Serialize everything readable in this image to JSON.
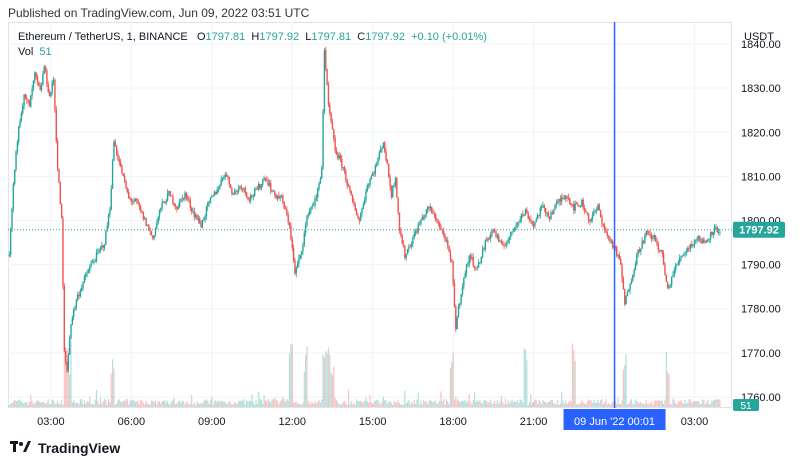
{
  "header": {
    "published": "Published on TradingView.com, Jun 09, 2022 03:51 UTC"
  },
  "legend": {
    "symbol": "Ethereum / TetherUS, 1, BINANCE",
    "o_label": "O",
    "o_value": "1797.81",
    "h_label": "H",
    "h_value": "1797.92",
    "l_label": "L",
    "l_value": "1797.81",
    "c_label": "C",
    "c_value": "1797.92",
    "change": "+0.10 (+0.01%)",
    "vol_label": "Vol",
    "vol_value": "51"
  },
  "footer": {
    "brand": "TradingView"
  },
  "colors": {
    "up": "#26a69a",
    "down": "#ef5350",
    "crosshair": "#2962ff",
    "last": "#26a69a"
  },
  "chart_data": {
    "type": "candlestick",
    "currency": "USDT",
    "y_ticks": [
      "1840.00",
      "1830.00",
      "1820.00",
      "1810.00",
      "1800.00",
      "1790.00",
      "1780.00",
      "1770.00",
      "1760.00"
    ],
    "ylim": [
      1757.5,
      1845
    ],
    "x_ticks": [
      "03:00",
      "06:00",
      "09:00",
      "12:00",
      "15:00",
      "18:00",
      "21:00",
      "03:00"
    ],
    "x_tick_hours": [
      3,
      6,
      9,
      12,
      15,
      18,
      21,
      27
    ],
    "xlim_hours": [
      1.4,
      28.4
    ],
    "last_price": "1797.92",
    "last_volume": "51",
    "crosshair_label": "09 Jun '22   00:01",
    "crosshair_hour": 24.02,
    "series_close_points": [
      [
        1.45,
        1792
      ],
      [
        1.6,
        1808
      ],
      [
        1.8,
        1822
      ],
      [
        2.0,
        1828
      ],
      [
        2.2,
        1826
      ],
      [
        2.4,
        1833
      ],
      [
        2.6,
        1829
      ],
      [
        2.75,
        1835
      ],
      [
        2.95,
        1828
      ],
      [
        3.1,
        1832
      ],
      [
        3.25,
        1812
      ],
      [
        3.4,
        1800
      ],
      [
        3.5,
        1770
      ],
      [
        3.6,
        1766
      ],
      [
        3.75,
        1777
      ],
      [
        3.95,
        1782
      ],
      [
        4.2,
        1786
      ],
      [
        4.5,
        1790
      ],
      [
        4.8,
        1793
      ],
      [
        5.0,
        1795
      ],
      [
        5.2,
        1803
      ],
      [
        5.35,
        1818
      ],
      [
        5.6,
        1812
      ],
      [
        5.9,
        1805
      ],
      [
        6.2,
        1804
      ],
      [
        6.5,
        1800
      ],
      [
        6.8,
        1796
      ],
      [
        7.1,
        1803
      ],
      [
        7.4,
        1806
      ],
      [
        7.7,
        1803
      ],
      [
        8.0,
        1806
      ],
      [
        8.3,
        1802
      ],
      [
        8.6,
        1799
      ],
      [
        8.9,
        1804
      ],
      [
        9.2,
        1807
      ],
      [
        9.5,
        1811
      ],
      [
        9.8,
        1806
      ],
      [
        10.1,
        1808
      ],
      [
        10.4,
        1805
      ],
      [
        10.7,
        1807
      ],
      [
        11.0,
        1810
      ],
      [
        11.3,
        1806
      ],
      [
        11.6,
        1805
      ],
      [
        11.9,
        1799
      ],
      [
        12.1,
        1788
      ],
      [
        12.3,
        1792
      ],
      [
        12.6,
        1802
      ],
      [
        12.9,
        1805
      ],
      [
        13.1,
        1812
      ],
      [
        13.2,
        1838
      ],
      [
        13.35,
        1826
      ],
      [
        13.6,
        1816
      ],
      [
        13.9,
        1812
      ],
      [
        14.2,
        1805
      ],
      [
        14.5,
        1800
      ],
      [
        14.8,
        1808
      ],
      [
        15.1,
        1812
      ],
      [
        15.4,
        1818
      ],
      [
        15.7,
        1806
      ],
      [
        15.85,
        1810
      ],
      [
        16.0,
        1798
      ],
      [
        16.2,
        1792
      ],
      [
        16.5,
        1796
      ],
      [
        16.8,
        1800
      ],
      [
        17.1,
        1803
      ],
      [
        17.4,
        1800
      ],
      [
        17.7,
        1796
      ],
      [
        17.95,
        1790
      ],
      [
        18.1,
        1776
      ],
      [
        18.3,
        1784
      ],
      [
        18.6,
        1792
      ],
      [
        18.9,
        1789
      ],
      [
        19.2,
        1795
      ],
      [
        19.5,
        1798
      ],
      [
        19.8,
        1794
      ],
      [
        20.1,
        1796
      ],
      [
        20.4,
        1800
      ],
      [
        20.7,
        1802
      ],
      [
        21.0,
        1799
      ],
      [
        21.3,
        1803
      ],
      [
        21.6,
        1801
      ],
      [
        21.9,
        1804
      ],
      [
        22.2,
        1806
      ],
      [
        22.5,
        1803
      ],
      [
        22.8,
        1804
      ],
      [
        23.1,
        1800
      ],
      [
        23.4,
        1803
      ],
      [
        23.7,
        1797
      ],
      [
        24.0,
        1794
      ],
      [
        24.25,
        1790
      ],
      [
        24.4,
        1781
      ],
      [
        24.6,
        1786
      ],
      [
        24.9,
        1793
      ],
      [
        25.2,
        1797
      ],
      [
        25.5,
        1796
      ],
      [
        25.8,
        1792
      ],
      [
        26.0,
        1784
      ],
      [
        26.2,
        1788
      ],
      [
        26.5,
        1792
      ],
      [
        26.8,
        1794
      ],
      [
        27.1,
        1796
      ],
      [
        27.4,
        1795
      ],
      [
        27.7,
        1798
      ],
      [
        28.0,
        1797.92
      ]
    ],
    "volume_spikes_hours": [
      3.55,
      3.7,
      5.3,
      11.95,
      12.5,
      13.2,
      13.35,
      13.5,
      17.95,
      20.7,
      22.5,
      24.4,
      26.0
    ]
  }
}
